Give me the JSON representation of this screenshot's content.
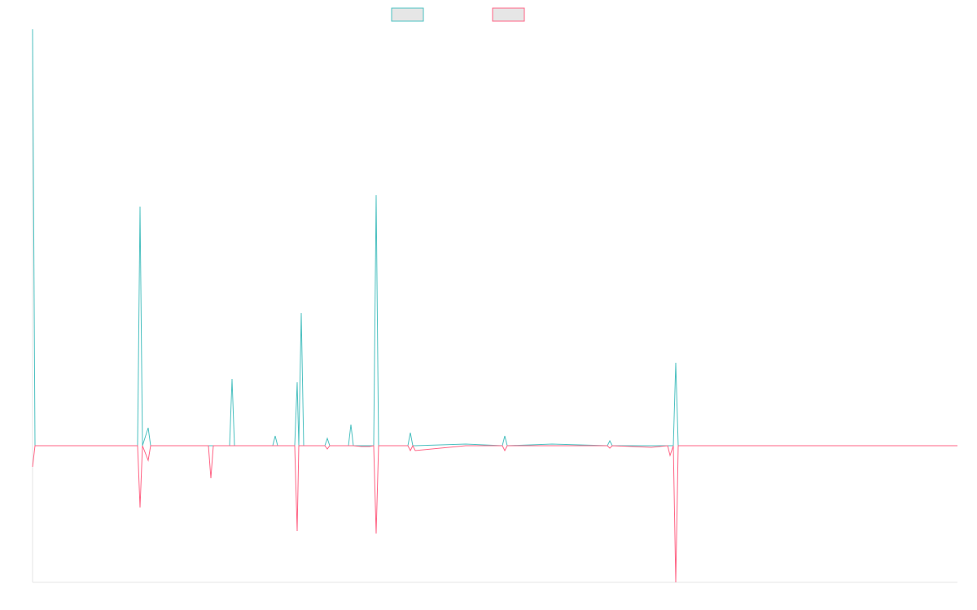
{
  "chart_data": {
    "type": "line",
    "x": [
      0,
      3,
      129,
      132,
      135,
      142,
      145,
      216,
      219,
      222,
      242,
      245,
      248,
      295,
      298,
      301,
      322,
      325,
      327,
      330,
      333,
      359,
      362,
      365,
      388,
      391,
      394,
      404,
      414,
      419,
      422,
      425,
      461,
      464,
      467,
      470,
      532,
      577,
      580,
      583,
      638,
      706,
      709,
      712,
      760,
      780,
      783,
      787,
      790,
      793,
      1136
    ],
    "xlim": [
      0,
      1136
    ],
    "ylim": [
      -168,
      512
    ],
    "series": [
      {
        "color": "#4bc0c0",
        "values": [
          512,
          0,
          0,
          294,
          0,
          22,
          0,
          0,
          0,
          0,
          0,
          82,
          0,
          0,
          12,
          0,
          0,
          78,
          0,
          163,
          0,
          0,
          9,
          0,
          0,
          26,
          0,
          0,
          0,
          0,
          308,
          0,
          0,
          16,
          0,
          0,
          2,
          0,
          12,
          0,
          2,
          0,
          6,
          0,
          0,
          0,
          0,
          0,
          102,
          0,
          0
        ]
      },
      {
        "color": "#ff6384",
        "values": [
          -26,
          0,
          0,
          -76,
          0,
          -18,
          0,
          0,
          -40,
          0,
          0,
          0,
          0,
          0,
          0,
          0,
          0,
          -105,
          0,
          0,
          0,
          0,
          -4,
          0,
          0,
          0,
          0,
          -1,
          -1,
          0,
          -108,
          0,
          0,
          -6,
          0,
          -6,
          0,
          0,
          -6,
          0,
          0,
          0,
          -3,
          0,
          -2,
          0,
          -12,
          0,
          -168,
          0,
          0
        ]
      }
    ]
  }
}
